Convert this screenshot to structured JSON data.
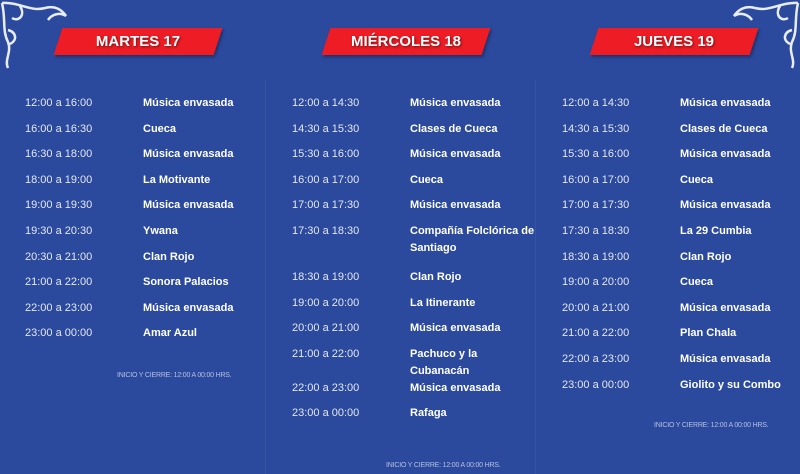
{
  "days": [
    {
      "title": "MARTES 17",
      "footer": "INICIO Y CIERRE: 12:00 A 00:00 HRS.",
      "rows": [
        {
          "time": "12:00 a 16:00",
          "event": "Música envasada"
        },
        {
          "time": "16:00 a 16:30",
          "event": "Cueca"
        },
        {
          "time": "16:30 a 18:00",
          "event": "Música envasada"
        },
        {
          "time": "18:00 a 19:00",
          "event": "La Motivante"
        },
        {
          "time": "19:00 a 19:30",
          "event": "Música envasada"
        },
        {
          "time": "19:30 a 20:30",
          "event": "Ywana"
        },
        {
          "time": "20:30 a 21:00",
          "event": "Clan Rojo"
        },
        {
          "time": "21:00 a 22:00",
          "event": "Sonora Palacios"
        },
        {
          "time": "22:00 a 23:00",
          "event": "Música envasada"
        },
        {
          "time": "23:00 a 00:00",
          "event": "Amar Azul"
        }
      ]
    },
    {
      "title": "MIÉRCOLES 18",
      "footer": "INICIO Y CIERRE: 12:00 A 00:00 HRS.",
      "rows": [
        {
          "time": "12:00 a 14:30",
          "event": "Música envasada"
        },
        {
          "time": "14:30 a 15:30",
          "event": "Clases de Cueca"
        },
        {
          "time": "15:30 a 16:00",
          "event": "Música envasada"
        },
        {
          "time": "16:00 a 17:00",
          "event": "Cueca"
        },
        {
          "time": "17:00 a 17:30",
          "event": "Música envasada"
        },
        {
          "time": "17:30 a 18:30",
          "event": "Compañía Folclórica de Santiago"
        },
        {
          "time": "18:30 a 19:00",
          "event": "Clan Rojo"
        },
        {
          "time": "19:00 a 20:00",
          "event": "La Itinerante"
        },
        {
          "time": "20:00 a 21:00",
          "event": "Música envasada"
        },
        {
          "time": "21:00 a 22:00",
          "event": "Pachuco y la Cubanacán"
        },
        {
          "time": "22:00 a 23:00",
          "event": "Música envasada"
        },
        {
          "time": "23:00 a 00:00",
          "event": "Rafaga"
        }
      ]
    },
    {
      "title": "JUEVES 19",
      "footer": "INICIO Y CIERRE: 12:00 A 00:00 HRS.",
      "rows": [
        {
          "time": "12:00 a 14:30",
          "event": "Música envasada"
        },
        {
          "time": "14:30 a 15:30",
          "event": "Clases de Cueca"
        },
        {
          "time": "15:30 a 16:00",
          "event": "Música envasada"
        },
        {
          "time": "16:00 a 17:00",
          "event": "Cueca"
        },
        {
          "time": "17:00 a 17:30",
          "event": "Música envasada"
        },
        {
          "time": "17:30 a 18:30",
          "event": "La 29 Cumbia"
        },
        {
          "time": "18:30 a 19:00",
          "event": "Clan Rojo"
        },
        {
          "time": "19:00 a 20:00",
          "event": "Cueca"
        },
        {
          "time": "20:00 a 21:00",
          "event": "Música envasada"
        },
        {
          "time": "21:00 a 22:00",
          "event": "Plan Chala"
        },
        {
          "time": "22:00 a 23:00",
          "event": "Música envasada"
        },
        {
          "time": "23:00 a 00:00",
          "event": "Giolito y su Combo"
        }
      ]
    }
  ],
  "colors": {
    "background": "#2b4a9e",
    "banner": "#ee1c24"
  }
}
